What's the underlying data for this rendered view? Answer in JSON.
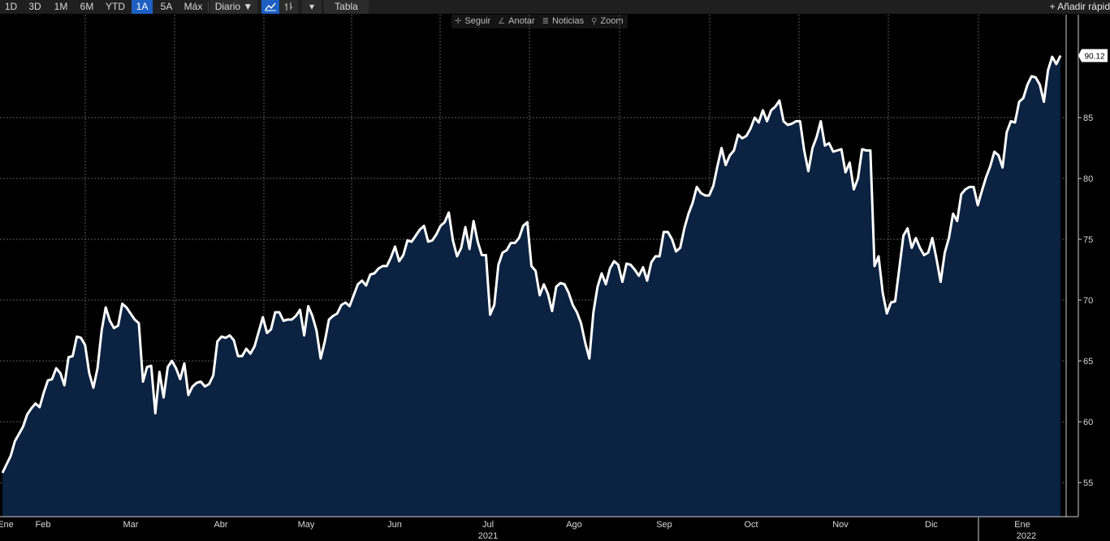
{
  "toolbar": {
    "ranges": [
      "1D",
      "3D",
      "1M",
      "6M",
      "YTD",
      "1A",
      "5A",
      "Máx"
    ],
    "active_range": "1A",
    "frequency": "Diario ▼",
    "line_icon": "line-chart-icon",
    "bar_icon": "ohlc-bars-icon",
    "dropdown_icon": "▾",
    "table_label": "Tabla",
    "quick_add_label": "+ Añadir rápid"
  },
  "subbar": {
    "follow": "Seguir",
    "annotate": "Anotar",
    "news": "Noticias",
    "zoom": "Zoom"
  },
  "colors": {
    "background": "#000000",
    "line": "#ffffff",
    "area_fill": "#0b2240",
    "grid": "#5a5a5a",
    "active_button": "#1e5fc4"
  },
  "chart_data": {
    "type": "area",
    "title": "",
    "xlabel": "",
    "ylabel": "",
    "ylim": [
      52.5,
      92.5
    ],
    "yticks": [
      55,
      60,
      65,
      70,
      75,
      80,
      85
    ],
    "grid": true,
    "last_value_label": "90.12",
    "x_month_labels": [
      "Ene",
      "Feb",
      "Mar",
      "Abr",
      "May",
      "Jun",
      "Jul",
      "Ago",
      "Sep",
      "Oct",
      "Nov",
      "Dic",
      "Ene"
    ],
    "year_labels": [
      "2021",
      "2022"
    ],
    "series": [
      {
        "values": [
          55.8,
          56.5,
          57.2,
          58.4,
          59.0,
          59.6,
          60.6,
          61.1,
          61.5,
          61.2,
          62.4,
          63.4,
          63.5,
          64.4,
          64.0,
          63.0,
          65.3,
          65.4,
          67.0,
          66.9,
          66.3,
          64.0,
          62.8,
          64.4,
          67.5,
          69.4,
          68.3,
          67.7,
          67.9,
          69.7,
          69.4,
          68.9,
          68.4,
          68.1,
          63.3,
          64.5,
          64.6,
          60.7,
          64.1,
          62.0,
          64.5,
          65.0,
          64.4,
          63.5,
          64.8,
          62.2,
          62.9,
          63.2,
          63.3,
          62.9,
          63.1,
          63.8,
          66.6,
          67.0,
          66.9,
          67.1,
          66.7,
          65.4,
          65.4,
          66.0,
          65.6,
          66.2,
          67.4,
          68.6,
          67.3,
          67.6,
          69.0,
          69.0,
          68.3,
          68.4,
          68.4,
          68.7,
          69.2,
          67.1,
          69.5,
          68.7,
          67.5,
          65.2,
          66.6,
          68.4,
          68.7,
          68.9,
          69.6,
          69.8,
          69.5,
          70.4,
          71.3,
          71.6,
          71.2,
          72.1,
          72.2,
          72.6,
          72.8,
          72.8,
          73.5,
          74.4,
          73.2,
          73.7,
          74.9,
          74.8,
          75.3,
          75.8,
          76.1,
          74.8,
          74.9,
          75.4,
          76.1,
          76.4,
          77.2,
          74.9,
          73.6,
          74.3,
          76.0,
          74.2,
          76.5,
          74.8,
          73.7,
          73.7,
          68.8,
          69.6,
          72.9,
          73.9,
          74.1,
          74.7,
          74.7,
          75.1,
          76.1,
          76.4,
          72.8,
          72.4,
          70.4,
          71.3,
          70.5,
          69.1,
          71.1,
          71.4,
          71.3,
          70.6,
          69.6,
          69.0,
          68.1,
          66.5,
          65.2,
          69.0,
          71.1,
          72.2,
          71.3,
          72.6,
          73.2,
          72.9,
          71.5,
          73.0,
          72.9,
          72.5,
          72.0,
          72.7,
          71.6,
          73.1,
          73.6,
          73.6,
          75.6,
          75.6,
          75.0,
          74.0,
          74.3,
          75.9,
          77.1,
          78.0,
          79.3,
          78.8,
          78.6,
          78.6,
          79.4,
          81.0,
          82.5,
          81.1,
          81.9,
          82.3,
          83.6,
          83.3,
          83.5,
          84.1,
          85.0,
          84.6,
          85.6,
          84.7,
          85.6,
          85.9,
          86.4,
          84.7,
          84.4,
          84.5,
          84.7,
          84.7,
          82.3,
          80.6,
          82.5,
          83.4,
          84.7,
          82.7,
          82.9,
          82.2,
          82.3,
          82.4,
          80.5,
          81.3,
          79.1,
          80.0,
          82.4,
          82.3,
          82.3,
          72.8,
          73.6,
          70.6,
          68.9,
          69.8,
          69.9,
          72.6,
          75.3,
          75.9,
          74.3,
          75.1,
          74.3,
          73.7,
          73.9,
          75.1,
          73.4,
          71.5,
          73.9,
          75.1,
          77.1,
          76.5,
          78.7,
          79.1,
          79.3,
          79.3,
          77.8,
          79.0,
          80.1,
          81.0,
          82.2,
          81.9,
          80.9,
          83.8,
          84.7,
          84.6,
          86.3,
          86.6,
          87.7,
          88.4,
          88.3,
          87.7,
          86.3,
          88.9,
          90.0,
          89.4,
          90.1
        ]
      }
    ]
  }
}
